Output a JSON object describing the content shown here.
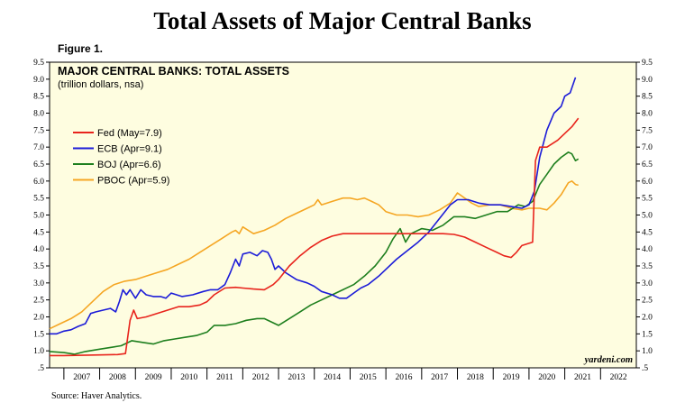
{
  "page": {
    "title": "Total Assets of Major Central Banks",
    "figure_label": "Figure 1.",
    "source": "Source: Haver Analytics."
  },
  "chart_data": {
    "type": "line",
    "title": "MAJOR CENTRAL BANKS: TOTAL ASSETS",
    "subtitle": "(trillion dollars, nsa)",
    "watermark": "yardeni.com",
    "xlabel": "",
    "ylabel": "",
    "xlim": [
      2006.6,
      2023.0
    ],
    "ylim": [
      0.5,
      9.5
    ],
    "x_ticks": [
      "2007",
      "2008",
      "2009",
      "2010",
      "2011",
      "2012",
      "2013",
      "2014",
      "2015",
      "2016",
      "2017",
      "2018",
      "2019",
      "2020",
      "2021",
      "2022"
    ],
    "y_ticks": [
      ".5",
      "1.0",
      "1.5",
      "2.0",
      "2.5",
      "3.0",
      "3.5",
      "4.0",
      "4.5",
      "5.0",
      "5.5",
      "6.0",
      "6.5",
      "7.0",
      "7.5",
      "8.0",
      "8.5",
      "9.0",
      "9.5"
    ],
    "background": "#fefde0",
    "grid": false,
    "legend_position": "top-left",
    "series": [
      {
        "name": "Fed (May=7.9)",
        "color": "#e8241c",
        "points": [
          [
            2006.6,
            0.86
          ],
          [
            2007.0,
            0.86
          ],
          [
            2007.5,
            0.87
          ],
          [
            2008.0,
            0.88
          ],
          [
            2008.5,
            0.89
          ],
          [
            2008.72,
            0.92
          ],
          [
            2008.85,
            1.9
          ],
          [
            2008.95,
            2.2
          ],
          [
            2009.05,
            1.95
          ],
          [
            2009.3,
            2.0
          ],
          [
            2009.6,
            2.1
          ],
          [
            2009.9,
            2.2
          ],
          [
            2010.2,
            2.3
          ],
          [
            2010.5,
            2.3
          ],
          [
            2010.8,
            2.35
          ],
          [
            2011.0,
            2.45
          ],
          [
            2011.2,
            2.65
          ],
          [
            2011.5,
            2.85
          ],
          [
            2011.8,
            2.87
          ],
          [
            2012.0,
            2.85
          ],
          [
            2012.3,
            2.82
          ],
          [
            2012.6,
            2.8
          ],
          [
            2012.85,
            2.95
          ],
          [
            2013.0,
            3.1
          ],
          [
            2013.3,
            3.5
          ],
          [
            2013.6,
            3.8
          ],
          [
            2013.9,
            4.05
          ],
          [
            2014.2,
            4.25
          ],
          [
            2014.5,
            4.38
          ],
          [
            2014.8,
            4.45
          ],
          [
            2015.2,
            4.45
          ],
          [
            2015.6,
            4.45
          ],
          [
            2016.0,
            4.45
          ],
          [
            2016.4,
            4.45
          ],
          [
            2016.8,
            4.45
          ],
          [
            2017.2,
            4.45
          ],
          [
            2017.6,
            4.45
          ],
          [
            2017.9,
            4.43
          ],
          [
            2018.2,
            4.35
          ],
          [
            2018.5,
            4.2
          ],
          [
            2018.8,
            4.05
          ],
          [
            2019.1,
            3.9
          ],
          [
            2019.3,
            3.8
          ],
          [
            2019.5,
            3.75
          ],
          [
            2019.65,
            3.9
          ],
          [
            2019.8,
            4.1
          ],
          [
            2019.95,
            4.15
          ],
          [
            2020.1,
            4.2
          ],
          [
            2020.18,
            6.6
          ],
          [
            2020.3,
            7.0
          ],
          [
            2020.5,
            7.0
          ],
          [
            2020.8,
            7.2
          ],
          [
            2021.0,
            7.4
          ],
          [
            2021.2,
            7.6
          ],
          [
            2021.38,
            7.85
          ]
        ]
      },
      {
        "name": "ECB (Apr=9.1)",
        "color": "#1c1cd8",
        "points": [
          [
            2006.6,
            1.5
          ],
          [
            2006.8,
            1.5
          ],
          [
            2007.0,
            1.58
          ],
          [
            2007.2,
            1.62
          ],
          [
            2007.4,
            1.72
          ],
          [
            2007.6,
            1.8
          ],
          [
            2007.75,
            2.1
          ],
          [
            2007.9,
            2.15
          ],
          [
            2008.1,
            2.2
          ],
          [
            2008.3,
            2.25
          ],
          [
            2008.45,
            2.15
          ],
          [
            2008.55,
            2.45
          ],
          [
            2008.65,
            2.8
          ],
          [
            2008.75,
            2.65
          ],
          [
            2008.85,
            2.8
          ],
          [
            2009.0,
            2.55
          ],
          [
            2009.15,
            2.8
          ],
          [
            2009.3,
            2.65
          ],
          [
            2009.5,
            2.6
          ],
          [
            2009.7,
            2.6
          ],
          [
            2009.85,
            2.55
          ],
          [
            2010.0,
            2.7
          ],
          [
            2010.3,
            2.6
          ],
          [
            2010.6,
            2.65
          ],
          [
            2010.9,
            2.75
          ],
          [
            2011.1,
            2.8
          ],
          [
            2011.3,
            2.8
          ],
          [
            2011.5,
            2.95
          ],
          [
            2011.65,
            3.3
          ],
          [
            2011.8,
            3.7
          ],
          [
            2011.9,
            3.5
          ],
          [
            2012.0,
            3.85
          ],
          [
            2012.2,
            3.9
          ],
          [
            2012.4,
            3.8
          ],
          [
            2012.55,
            3.95
          ],
          [
            2012.7,
            3.9
          ],
          [
            2012.8,
            3.7
          ],
          [
            2012.9,
            3.4
          ],
          [
            2013.0,
            3.5
          ],
          [
            2013.2,
            3.3
          ],
          [
            2013.5,
            3.1
          ],
          [
            2013.8,
            3.0
          ],
          [
            2014.0,
            2.9
          ],
          [
            2014.2,
            2.75
          ],
          [
            2014.5,
            2.65
          ],
          [
            2014.7,
            2.55
          ],
          [
            2014.9,
            2.55
          ],
          [
            2015.1,
            2.7
          ],
          [
            2015.3,
            2.85
          ],
          [
            2015.5,
            2.95
          ],
          [
            2015.8,
            3.2
          ],
          [
            2016.0,
            3.4
          ],
          [
            2016.3,
            3.7
          ],
          [
            2016.6,
            3.95
          ],
          [
            2016.9,
            4.2
          ],
          [
            2017.2,
            4.5
          ],
          [
            2017.5,
            4.9
          ],
          [
            2017.8,
            5.3
          ],
          [
            2018.0,
            5.45
          ],
          [
            2018.3,
            5.45
          ],
          [
            2018.6,
            5.35
          ],
          [
            2018.9,
            5.3
          ],
          [
            2019.2,
            5.3
          ],
          [
            2019.5,
            5.25
          ],
          [
            2019.8,
            5.2
          ],
          [
            2020.0,
            5.3
          ],
          [
            2020.15,
            5.7
          ],
          [
            2020.3,
            6.7
          ],
          [
            2020.5,
            7.5
          ],
          [
            2020.7,
            8.0
          ],
          [
            2020.9,
            8.2
          ],
          [
            2021.0,
            8.5
          ],
          [
            2021.15,
            8.6
          ],
          [
            2021.3,
            9.05
          ]
        ]
      },
      {
        "name": "BOJ (Apr=6.6)",
        "color": "#1e7f1e",
        "points": [
          [
            2006.6,
            0.98
          ],
          [
            2007.0,
            0.95
          ],
          [
            2007.3,
            0.9
          ],
          [
            2007.6,
            0.98
          ],
          [
            2008.0,
            1.05
          ],
          [
            2008.3,
            1.1
          ],
          [
            2008.6,
            1.15
          ],
          [
            2008.9,
            1.3
          ],
          [
            2009.2,
            1.25
          ],
          [
            2009.5,
            1.2
          ],
          [
            2009.8,
            1.3
          ],
          [
            2010.1,
            1.35
          ],
          [
            2010.4,
            1.4
          ],
          [
            2010.7,
            1.45
          ],
          [
            2011.0,
            1.55
          ],
          [
            2011.2,
            1.75
          ],
          [
            2011.5,
            1.75
          ],
          [
            2011.8,
            1.8
          ],
          [
            2012.1,
            1.9
          ],
          [
            2012.4,
            1.95
          ],
          [
            2012.6,
            1.95
          ],
          [
            2012.8,
            1.85
          ],
          [
            2013.0,
            1.75
          ],
          [
            2013.3,
            1.95
          ],
          [
            2013.6,
            2.15
          ],
          [
            2013.9,
            2.35
          ],
          [
            2014.2,
            2.5
          ],
          [
            2014.5,
            2.65
          ],
          [
            2014.8,
            2.8
          ],
          [
            2015.1,
            2.95
          ],
          [
            2015.4,
            3.2
          ],
          [
            2015.7,
            3.5
          ],
          [
            2016.0,
            3.9
          ],
          [
            2016.2,
            4.3
          ],
          [
            2016.4,
            4.6
          ],
          [
            2016.55,
            4.2
          ],
          [
            2016.7,
            4.45
          ],
          [
            2017.0,
            4.6
          ],
          [
            2017.3,
            4.55
          ],
          [
            2017.6,
            4.7
          ],
          [
            2017.9,
            4.95
          ],
          [
            2018.2,
            4.95
          ],
          [
            2018.5,
            4.9
          ],
          [
            2018.8,
            5.0
          ],
          [
            2019.1,
            5.1
          ],
          [
            2019.4,
            5.1
          ],
          [
            2019.7,
            5.3
          ],
          [
            2019.9,
            5.25
          ],
          [
            2020.1,
            5.4
          ],
          [
            2020.3,
            5.9
          ],
          [
            2020.5,
            6.2
          ],
          [
            2020.7,
            6.5
          ],
          [
            2020.9,
            6.7
          ],
          [
            2021.1,
            6.85
          ],
          [
            2021.2,
            6.8
          ],
          [
            2021.3,
            6.6
          ],
          [
            2021.38,
            6.65
          ]
        ]
      },
      {
        "name": "PBOC (Apr=5.9)",
        "color": "#f5a623",
        "points": [
          [
            2006.6,
            1.65
          ],
          [
            2006.9,
            1.8
          ],
          [
            2007.2,
            1.95
          ],
          [
            2007.5,
            2.15
          ],
          [
            2007.8,
            2.45
          ],
          [
            2008.1,
            2.75
          ],
          [
            2008.4,
            2.95
          ],
          [
            2008.7,
            3.05
          ],
          [
            2009.0,
            3.1
          ],
          [
            2009.3,
            3.2
          ],
          [
            2009.6,
            3.3
          ],
          [
            2009.9,
            3.4
          ],
          [
            2010.2,
            3.55
          ],
          [
            2010.5,
            3.7
          ],
          [
            2010.8,
            3.9
          ],
          [
            2011.1,
            4.1
          ],
          [
            2011.4,
            4.3
          ],
          [
            2011.7,
            4.5
          ],
          [
            2011.8,
            4.55
          ],
          [
            2011.9,
            4.45
          ],
          [
            2012.0,
            4.65
          ],
          [
            2012.3,
            4.45
          ],
          [
            2012.6,
            4.55
          ],
          [
            2012.9,
            4.7
          ],
          [
            2013.2,
            4.9
          ],
          [
            2013.5,
            5.05
          ],
          [
            2013.8,
            5.2
          ],
          [
            2014.0,
            5.3
          ],
          [
            2014.1,
            5.45
          ],
          [
            2014.2,
            5.3
          ],
          [
            2014.5,
            5.4
          ],
          [
            2014.8,
            5.5
          ],
          [
            2015.0,
            5.5
          ],
          [
            2015.2,
            5.45
          ],
          [
            2015.4,
            5.5
          ],
          [
            2015.6,
            5.4
          ],
          [
            2015.8,
            5.3
          ],
          [
            2016.0,
            5.1
          ],
          [
            2016.3,
            5.0
          ],
          [
            2016.6,
            5.0
          ],
          [
            2016.9,
            4.95
          ],
          [
            2017.2,
            5.0
          ],
          [
            2017.5,
            5.15
          ],
          [
            2017.8,
            5.35
          ],
          [
            2018.0,
            5.65
          ],
          [
            2018.2,
            5.5
          ],
          [
            2018.4,
            5.35
          ],
          [
            2018.6,
            5.25
          ],
          [
            2018.9,
            5.3
          ],
          [
            2019.2,
            5.3
          ],
          [
            2019.5,
            5.2
          ],
          [
            2019.8,
            5.15
          ],
          [
            2020.0,
            5.2
          ],
          [
            2020.3,
            5.2
          ],
          [
            2020.5,
            5.15
          ],
          [
            2020.7,
            5.35
          ],
          [
            2020.9,
            5.6
          ],
          [
            2021.1,
            5.95
          ],
          [
            2021.2,
            6.0
          ],
          [
            2021.3,
            5.9
          ],
          [
            2021.38,
            5.88
          ]
        ]
      }
    ]
  }
}
